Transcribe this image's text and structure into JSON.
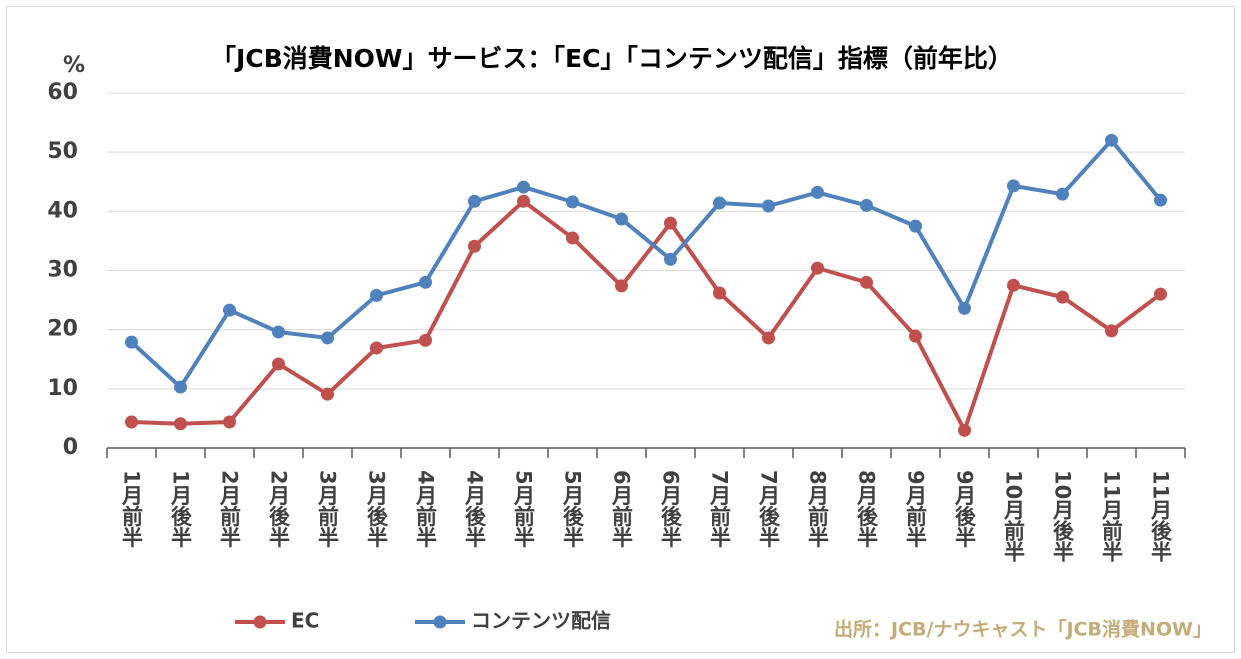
{
  "chart_data": {
    "type": "line",
    "title": "「JCB消費NOW」サービス：「EC」「コンテンツ配信」指標（前年比）",
    "y_label": "%",
    "source": "出所：JCB/ナウキャスト「JCB消費NOW」",
    "categories": [
      "1月前半",
      "1月後半",
      "2月前半",
      "2月後半",
      "3月前半",
      "3月後半",
      "4月前半",
      "4月後半",
      "5月前半",
      "5月後半",
      "6月前半",
      "6月後半",
      "7月前半",
      "7月後半",
      "8月前半",
      "8月後半",
      "9月前半",
      "9月後半",
      "10月前半",
      "10月後半",
      "11月前半",
      "11月後半"
    ],
    "series": [
      {
        "name": "EC",
        "color": "#c0504d",
        "values": [
          4.4,
          4.1,
          4.4,
          14.2,
          9.1,
          16.9,
          18.2,
          34.1,
          41.7,
          35.5,
          27.4,
          38.0,
          26.2,
          18.6,
          30.4,
          28.0,
          18.9,
          3.0,
          27.5,
          25.5,
          19.8,
          26.0
        ]
      },
      {
        "name": "コンテンツ配信",
        "color": "#4f81bd",
        "values": [
          17.9,
          10.3,
          23.3,
          19.6,
          18.6,
          25.8,
          28.0,
          41.7,
          44.1,
          41.6,
          38.7,
          31.9,
          41.4,
          40.9,
          43.2,
          41.0,
          37.5,
          23.6,
          44.3,
          42.9,
          52.0,
          41.9
        ]
      }
    ],
    "ylim": [
      0,
      60
    ],
    "yticks": [
      0,
      10,
      20,
      30,
      40,
      50,
      60
    ],
    "grid": true
  }
}
